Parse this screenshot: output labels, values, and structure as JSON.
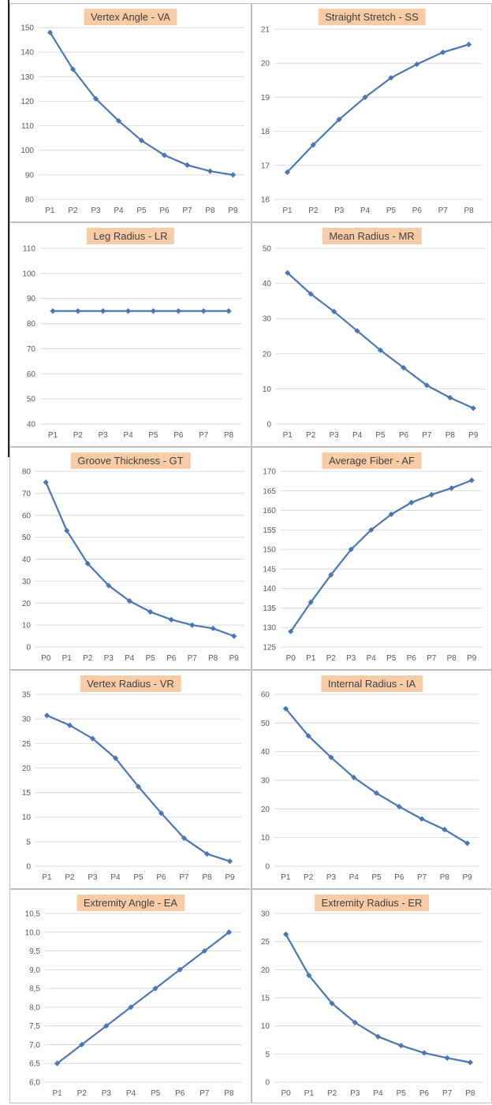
{
  "chart_data": [
    {
      "type": "line",
      "title": "Vertex Angle - VA",
      "categories": [
        "P1",
        "P2",
        "P3",
        "P4",
        "P5",
        "P6",
        "P7",
        "P8",
        "P9"
      ],
      "values": [
        148,
        133,
        121,
        112,
        104,
        98,
        94,
        91.5,
        90
      ],
      "ylim": [
        80,
        150
      ],
      "yticks": [
        "80",
        "90",
        "100",
        "110",
        "120",
        "130",
        "140",
        "150"
      ],
      "ystep": 10,
      "grid": "horizontal"
    },
    {
      "type": "line",
      "title": "Straight Stretch - SS",
      "categories": [
        "P1",
        "P2",
        "P3",
        "P4",
        "P5",
        "P6",
        "P7",
        "P8"
      ],
      "values": [
        16.8,
        17.6,
        18.35,
        19.0,
        19.57,
        19.97,
        20.32,
        20.55
      ],
      "ylim": [
        16,
        21
      ],
      "yticks": [
        "16",
        "17",
        "18",
        "19",
        "20",
        "21"
      ],
      "ystep": 1,
      "grid": "horizontal"
    },
    {
      "type": "line",
      "title": "Leg Radius - LR",
      "categories": [
        "P1",
        "P2",
        "P3",
        "P4",
        "P5",
        "P6",
        "P7",
        "P8"
      ],
      "values": [
        85,
        85,
        85,
        85,
        85,
        85,
        85,
        85
      ],
      "ylim": [
        40,
        110
      ],
      "yticks": [
        "40",
        "50",
        "60",
        "70",
        "80",
        "90",
        "100",
        "110"
      ],
      "ystep": 10,
      "grid": "horizontal"
    },
    {
      "type": "line",
      "title": "Mean Radius - MR",
      "categories": [
        "P1",
        "P2",
        "P3",
        "P4",
        "P5",
        "P6",
        "P7",
        "P8",
        "P9"
      ],
      "values": [
        43,
        37,
        32,
        26.5,
        21,
        16,
        11,
        7.5,
        4.5
      ],
      "ylim": [
        0,
        50
      ],
      "yticks": [
        "0",
        "10",
        "20",
        "30",
        "40",
        "50"
      ],
      "ystep": 10,
      "grid": "horizontal"
    },
    {
      "type": "line",
      "title": "Groove Thickness - GT",
      "categories": [
        "P0",
        "P1",
        "P2",
        "P3",
        "P4",
        "P5",
        "P6",
        "P7",
        "P8",
        "P9"
      ],
      "values": [
        75,
        53,
        38,
        28,
        21,
        16,
        12.5,
        10,
        8.5,
        5
      ],
      "ylim": [
        0,
        80
      ],
      "yticks": [
        "0",
        "10",
        "20",
        "30",
        "40",
        "50",
        "60",
        "70",
        "80"
      ],
      "ystep": 10,
      "grid": "horizontal"
    },
    {
      "type": "line",
      "title": "Average Fiber - AF",
      "categories": [
        "P0",
        "P1",
        "P2",
        "P3",
        "P4",
        "P5",
        "P6",
        "P7",
        "P8",
        "P9"
      ],
      "values": [
        129,
        136.5,
        143.5,
        150,
        155,
        159,
        162,
        164,
        165.7,
        167.7
      ],
      "ylim": [
        125,
        170
      ],
      "yticks": [
        "125",
        "130",
        "135",
        "140",
        "145",
        "150",
        "155",
        "160",
        "165",
        "170"
      ],
      "ystep": 5,
      "grid": "horizontal"
    },
    {
      "type": "line",
      "title": "Vertex Radius - VR",
      "categories": [
        "P1",
        "P2",
        "P3",
        "P4",
        "P5",
        "P6",
        "P7",
        "P8",
        "P9"
      ],
      "values": [
        30.7,
        28.7,
        26,
        22,
        16.2,
        10.8,
        5.7,
        2.5,
        1
      ],
      "ylim": [
        0,
        35
      ],
      "yticks": [
        "0",
        "5",
        "10",
        "15",
        "20",
        "25",
        "30",
        "35"
      ],
      "ystep": 5,
      "grid": "horizontal"
    },
    {
      "type": "line",
      "title": "Internal Radius - IA",
      "categories": [
        "P1",
        "P2",
        "P3",
        "P4",
        "P5",
        "P6",
        "P7",
        "P8",
        "P9"
      ],
      "values": [
        55,
        45.5,
        38,
        31,
        25.5,
        20.8,
        16.5,
        12.8,
        8
      ],
      "ylim": [
        0,
        60
      ],
      "yticks": [
        "0",
        "10",
        "20",
        "30",
        "40",
        "50",
        "60"
      ],
      "ystep": 10,
      "grid": "horizontal"
    },
    {
      "type": "line",
      "title": "Extremity Angle - EA",
      "categories": [
        "P1",
        "P2",
        "P3",
        "P4",
        "P5",
        "P6",
        "P7",
        "P8"
      ],
      "values": [
        6.5,
        7.0,
        7.5,
        8.0,
        8.5,
        9.0,
        9.5,
        10.0
      ],
      "ylim": [
        6,
        10.5
      ],
      "yticks": [
        "6,0",
        "6,5",
        "7,0",
        "7,5",
        "8,0",
        "8,5",
        "9,0",
        "9,5",
        "10,0",
        "10,5"
      ],
      "ystep": 0.5,
      "grid": "horizontal"
    },
    {
      "type": "line",
      "title": "Extremity Radius - ER",
      "categories": [
        "P0",
        "P1",
        "P2",
        "P3",
        "P4",
        "P5",
        "P6",
        "P7",
        "P8"
      ],
      "values": [
        26.3,
        19,
        14,
        10.6,
        8.1,
        6.5,
        5.2,
        4.3,
        3.5
      ],
      "ylim": [
        0,
        30
      ],
      "yticks": [
        "0",
        "5",
        "10",
        "15",
        "20",
        "25",
        "30"
      ],
      "ystep": 5,
      "grid": "horizontal"
    }
  ]
}
